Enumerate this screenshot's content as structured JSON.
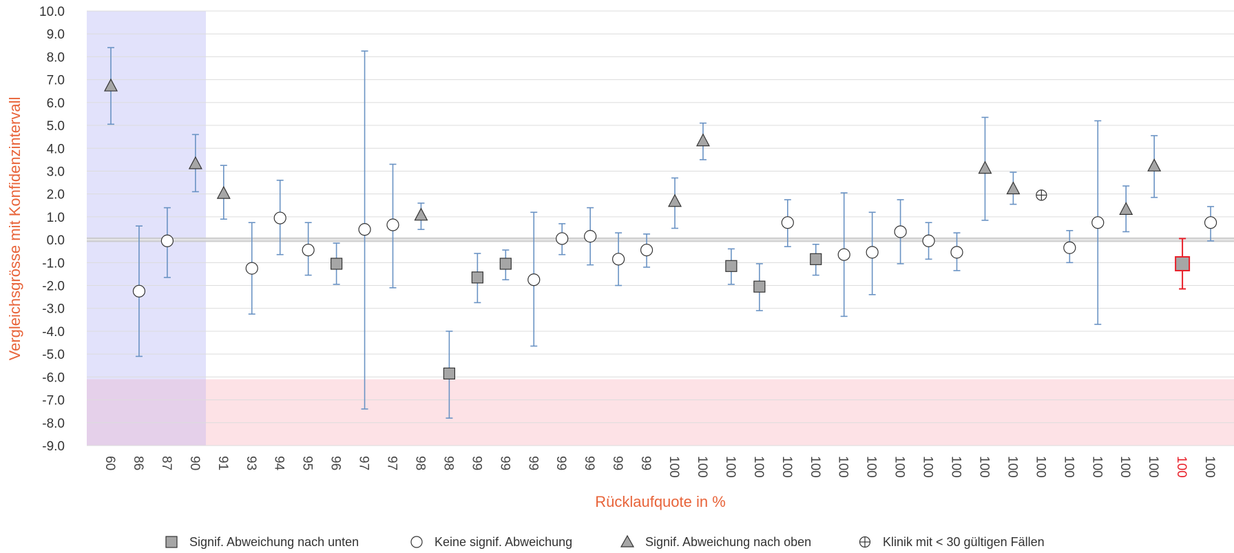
{
  "chart_data": {
    "type": "scatter",
    "ylabel": "Vergleichsgrösse mit Konfidenzintervall",
    "xlabel": "Rücklaufquote in %",
    "ylim": [
      -9.0,
      10.0
    ],
    "yticks": [
      "10.0",
      "9.0",
      "8.0",
      "7.0",
      "6.0",
      "5.0",
      "4.0",
      "3.0",
      "2.0",
      "1.0",
      "0.0",
      "-1.0",
      "-2.0",
      "-3.0",
      "-4.0",
      "-5.0",
      "-6.0",
      "-7.0",
      "-8.0",
      "-9.0"
    ],
    "grid": true,
    "legend_position": "bottom",
    "colors": {
      "axis_title": "#e8643a",
      "errorbar": "#6a93c4",
      "highlight": "#e8202a",
      "marker_fill": "#a6a6a6",
      "zero_band": "#c9c9c9",
      "band_blue": "#e2e2fb",
      "band_pink": "#fde2e6",
      "band_overlap": "#e5d0ea"
    },
    "regions": [
      {
        "name": "low-response",
        "color": "#e2e2fb"
      },
      {
        "name": "low-value",
        "y_from": -9.0,
        "y_to": -6.1,
        "color": "#fde2e6"
      }
    ],
    "points": [
      {
        "x": "60",
        "y": 6.7,
        "lo": 5.05,
        "hi": 8.4,
        "type": "up"
      },
      {
        "x": "86",
        "y": -2.25,
        "lo": -5.1,
        "hi": 0.6,
        "type": "none"
      },
      {
        "x": "87",
        "y": -0.05,
        "lo": -1.65,
        "hi": 1.4,
        "type": "none"
      },
      {
        "x": "90",
        "y": 3.3,
        "lo": 2.1,
        "hi": 4.6,
        "type": "up"
      },
      {
        "x": "91",
        "y": 2.0,
        "lo": 0.9,
        "hi": 3.25,
        "type": "up"
      },
      {
        "x": "93",
        "y": -1.25,
        "lo": -3.25,
        "hi": 0.75,
        "type": "none"
      },
      {
        "x": "94",
        "y": 0.95,
        "lo": -0.65,
        "hi": 2.6,
        "type": "none"
      },
      {
        "x": "95",
        "y": -0.45,
        "lo": -1.55,
        "hi": 0.75,
        "type": "none"
      },
      {
        "x": "96",
        "y": -1.05,
        "lo": -1.95,
        "hi": -0.15,
        "type": "down"
      },
      {
        "x": "97",
        "y": 0.45,
        "lo": -7.4,
        "hi": 8.25,
        "type": "none"
      },
      {
        "x": "97",
        "y": 0.65,
        "lo": -2.1,
        "hi": 3.3,
        "type": "none"
      },
      {
        "x": "98",
        "y": 1.05,
        "lo": 0.45,
        "hi": 1.6,
        "type": "up"
      },
      {
        "x": "98",
        "y": -5.85,
        "lo": -7.8,
        "hi": -4.0,
        "type": "down"
      },
      {
        "x": "99",
        "y": -1.65,
        "lo": -2.75,
        "hi": -0.6,
        "type": "down"
      },
      {
        "x": "99",
        "y": -1.05,
        "lo": -1.75,
        "hi": -0.45,
        "type": "down"
      },
      {
        "x": "99",
        "y": -1.75,
        "lo": -4.65,
        "hi": 1.2,
        "type": "none"
      },
      {
        "x": "99",
        "y": 0.05,
        "lo": -0.65,
        "hi": 0.7,
        "type": "none"
      },
      {
        "x": "99",
        "y": 0.15,
        "lo": -1.1,
        "hi": 1.4,
        "type": "none"
      },
      {
        "x": "99",
        "y": -0.85,
        "lo": -2.0,
        "hi": 0.3,
        "type": "none"
      },
      {
        "x": "99",
        "y": -0.45,
        "lo": -1.2,
        "hi": 0.25,
        "type": "none"
      },
      {
        "x": "100",
        "y": 1.65,
        "lo": 0.5,
        "hi": 2.7,
        "type": "up"
      },
      {
        "x": "100",
        "y": 4.3,
        "lo": 3.5,
        "hi": 5.1,
        "type": "up"
      },
      {
        "x": "100",
        "y": -1.15,
        "lo": -1.95,
        "hi": -0.4,
        "type": "down"
      },
      {
        "x": "100",
        "y": -2.05,
        "lo": -3.1,
        "hi": -1.05,
        "type": "down"
      },
      {
        "x": "100",
        "y": 0.75,
        "lo": -0.3,
        "hi": 1.75,
        "type": "none"
      },
      {
        "x": "100",
        "y": -0.85,
        "lo": -1.55,
        "hi": -0.2,
        "type": "down"
      },
      {
        "x": "100",
        "y": -0.65,
        "lo": -3.35,
        "hi": 2.05,
        "type": "none"
      },
      {
        "x": "100",
        "y": -0.55,
        "lo": -2.4,
        "hi": 1.2,
        "type": "none"
      },
      {
        "x": "100",
        "y": 0.35,
        "lo": -1.05,
        "hi": 1.75,
        "type": "none"
      },
      {
        "x": "100",
        "y": -0.05,
        "lo": -0.85,
        "hi": 0.75,
        "type": "none"
      },
      {
        "x": "100",
        "y": -0.55,
        "lo": -1.35,
        "hi": 0.3,
        "type": "none"
      },
      {
        "x": "100",
        "y": 3.1,
        "lo": 0.85,
        "hi": 5.35,
        "type": "up"
      },
      {
        "x": "100",
        "y": 2.2,
        "lo": 1.55,
        "hi": 2.95,
        "type": "up"
      },
      {
        "x": "100",
        "y": 1.95,
        "lo": null,
        "hi": null,
        "type": "few"
      },
      {
        "x": "100",
        "y": -0.35,
        "lo": -1.0,
        "hi": 0.4,
        "type": "none"
      },
      {
        "x": "100",
        "y": 0.75,
        "lo": -3.7,
        "hi": 5.2,
        "type": "none"
      },
      {
        "x": "100",
        "y": 1.3,
        "lo": 0.35,
        "hi": 2.35,
        "type": "up"
      },
      {
        "x": "100",
        "y": 3.2,
        "lo": 1.85,
        "hi": 4.55,
        "type": "up"
      },
      {
        "x": "100",
        "y": -1.05,
        "lo": -2.15,
        "hi": 0.05,
        "type": "down",
        "highlight": true
      },
      {
        "x": "100",
        "y": 0.75,
        "lo": -0.05,
        "hi": 1.45,
        "type": "none"
      }
    ],
    "legend": [
      {
        "marker": "square",
        "label": "Signif. Abweichung nach unten"
      },
      {
        "marker": "circle",
        "label": "Keine signif. Abweichung"
      },
      {
        "marker": "triangle",
        "label": "Signif. Abweichung nach oben"
      },
      {
        "marker": "crosshair",
        "label": "Klinik mit < 30 gültigen Fällen"
      }
    ]
  }
}
